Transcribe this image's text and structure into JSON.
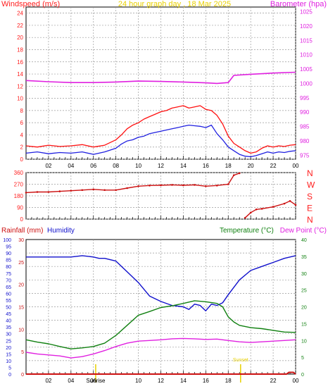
{
  "chart_data": [
    {
      "type": "line",
      "title": "24 hour graph day , 18 Mar 2025",
      "left_axis_label": "Windspeed (m/s)",
      "right_axis_label": "Barometer (hpa)",
      "x_tick_labels": [
        "02",
        "04",
        "06",
        "08",
        "10",
        "12",
        "14",
        "16",
        "18",
        "20",
        "22",
        "00"
      ],
      "x_ticks_hours": [
        2,
        4,
        6,
        8,
        10,
        12,
        14,
        16,
        18,
        20,
        22,
        24
      ],
      "x_range_hours": [
        0,
        24
      ],
      "left_ticks": [
        0,
        2,
        4,
        6,
        8,
        10,
        12,
        14,
        16,
        18,
        20,
        22,
        24
      ],
      "left_ylim": [
        0,
        25
      ],
      "right_ticks": [
        975,
        980,
        985,
        990,
        995,
        1000,
        1005,
        1010,
        1015,
        1020,
        1025
      ],
      "right_ylim": [
        973.6,
        1026.6
      ],
      "grid": true,
      "series": [
        {
          "name": "Windspeed",
          "axis": "left",
          "color": "#2020e0",
          "x": [
            0,
            1,
            2,
            3,
            4,
            5,
            6,
            7,
            8,
            8.5,
            9,
            9.5,
            10,
            10.5,
            11,
            11.5,
            12,
            12.5,
            13,
            13.5,
            14,
            14.5,
            15,
            15.5,
            16,
            16.5,
            17,
            17.5,
            18,
            18.5,
            19,
            19.5,
            20,
            20.5,
            21,
            21.5,
            22,
            22.5,
            23,
            23.5,
            24
          ],
          "y": [
            1.0,
            1.2,
            0.9,
            1.1,
            1.0,
            1.2,
            0.8,
            1.2,
            1.8,
            2.5,
            3.0,
            3.2,
            3.6,
            3.8,
            4.2,
            4.4,
            4.6,
            4.8,
            5.0,
            5.2,
            5.4,
            5.6,
            5.5,
            5.4,
            5.2,
            5.6,
            4.2,
            3.2,
            2.0,
            1.4,
            0.8,
            0.5,
            0.4,
            0.6,
            0.9,
            1.2,
            1.0,
            1.2,
            1.1,
            1.3,
            1.4
          ]
        },
        {
          "name": "Wind gust",
          "axis": "left",
          "color": "#ff1010",
          "x": [
            0,
            1,
            2,
            3,
            4,
            5,
            6,
            7,
            8,
            8.5,
            9,
            9.5,
            10,
            10.5,
            11,
            11.5,
            12,
            12.5,
            13,
            13.5,
            14,
            14.5,
            15,
            15.5,
            16,
            16.5,
            17,
            17.5,
            18,
            18.5,
            19,
            19.5,
            20,
            20.5,
            21,
            21.5,
            22,
            22.5,
            23,
            23.5,
            24
          ],
          "y": [
            2.2,
            2.0,
            2.3,
            2.1,
            2.2,
            2.4,
            2.0,
            2.3,
            3.2,
            4.0,
            5.0,
            5.6,
            6.0,
            6.6,
            7.0,
            7.4,
            7.8,
            8.0,
            8.4,
            8.6,
            8.8,
            8.4,
            8.6,
            8.8,
            8.2,
            8.0,
            7.2,
            5.8,
            3.8,
            2.6,
            2.0,
            1.4,
            1.0,
            1.2,
            1.8,
            2.2,
            2.0,
            2.2,
            2.1,
            2.3,
            2.4
          ]
        },
        {
          "name": "Barometer",
          "axis": "right",
          "color": "#e020e0",
          "x": [
            0,
            2,
            4,
            6,
            8,
            10,
            12,
            14,
            16,
            17,
            18,
            18.5,
            20,
            22,
            24
          ],
          "y": [
            1001.0,
            1000.6,
            1000.3,
            1000.3,
            1000.5,
            1000.8,
            1000.7,
            1000.5,
            1000.2,
            1000.0,
            1000.3,
            1002.8,
            1003.2,
            1003.6,
            1003.9
          ]
        }
      ]
    },
    {
      "type": "scatter",
      "title": "",
      "left_ticks": [
        0,
        90,
        180,
        270,
        360
      ],
      "left_ylim": [
        0,
        360
      ],
      "right_labels": [
        "N",
        "W",
        "S",
        "E",
        "N"
      ],
      "x_range_hours": [
        0,
        24
      ],
      "grid": true,
      "series": [
        {
          "name": "Wind direction",
          "color": "#cc1010",
          "x": [
            0,
            1,
            2,
            3,
            4,
            5,
            6,
            7,
            8,
            9,
            10,
            11,
            12,
            13,
            14,
            15,
            16,
            17,
            18,
            18.5,
            19,
            19.5,
            20,
            20.5,
            21,
            22,
            23,
            23.5,
            24
          ],
          "y": [
            205,
            210,
            210,
            215,
            220,
            225,
            230,
            225,
            225,
            240,
            255,
            260,
            262,
            265,
            262,
            265,
            255,
            260,
            270,
            340,
            355,
            10,
            50,
            75,
            80,
            95,
            120,
            140,
            110
          ]
        }
      ]
    },
    {
      "type": "line",
      "title": "",
      "left_axis_label": "Rainfall (mm)",
      "left2_axis_label": "Humidity",
      "right_axis_label": "Temperature (°C)",
      "right2_axis_label": "Dew Point (°C)",
      "rain_ticks": [
        0,
        5,
        10,
        15,
        20,
        25,
        30
      ],
      "rain_ylim": [
        0,
        30
      ],
      "humidity_ticks": [
        0,
        5,
        10,
        15,
        20,
        25,
        30,
        35,
        40,
        45,
        50,
        55,
        60,
        65,
        70,
        75,
        80,
        85,
        90,
        95,
        100
      ],
      "humidity_ylim": [
        0,
        100
      ],
      "temp_ticks": [
        0,
        5,
        10,
        15,
        20,
        25,
        30,
        35,
        40
      ],
      "temp_ylim": [
        0,
        40
      ],
      "sunrise_label": "Sunrise",
      "sunrise_hour": 6.2,
      "sunset_label": "Sunset",
      "sunset_hour": 19.1,
      "x_range_hours": [
        0,
        24
      ],
      "grid": true,
      "series": [
        {
          "name": "Humidity",
          "axis": "humidity",
          "color": "#1010cc",
          "x": [
            0,
            2,
            4,
            5,
            6,
            6.5,
            7,
            8,
            9,
            10,
            11,
            12,
            13,
            14,
            14.5,
            15,
            15.5,
            16,
            16.5,
            17,
            17.5,
            18,
            19,
            20,
            21,
            22,
            23,
            24
          ],
          "y": [
            87,
            87,
            87,
            88,
            87,
            86,
            86,
            84,
            76,
            68,
            58,
            54,
            51,
            50,
            48,
            52,
            51,
            47,
            52,
            51,
            53,
            59,
            70,
            77,
            80,
            83,
            86,
            88
          ]
        },
        {
          "name": "Temperature",
          "axis": "temp",
          "color": "#108010",
          "x": [
            0,
            1,
            2,
            3,
            4,
            5,
            6,
            7,
            8,
            9,
            10,
            11,
            12,
            13,
            14,
            15,
            16,
            17,
            17.5,
            18,
            18.5,
            19,
            20,
            21,
            22,
            23,
            24
          ],
          "y": [
            10.2,
            9.5,
            9.0,
            8.2,
            7.5,
            7.8,
            8.2,
            9.2,
            11.5,
            14.5,
            17.5,
            18.6,
            19.8,
            20.3,
            21.0,
            21.8,
            21.5,
            21.0,
            20.0,
            17.0,
            15.5,
            14.5,
            13.8,
            13.5,
            13.0,
            12.5,
            12.4
          ]
        },
        {
          "name": "Dew Point",
          "axis": "temp",
          "color": "#e020e0",
          "x": [
            0,
            1,
            2,
            3,
            4,
            5,
            6,
            7,
            8,
            9,
            10,
            11,
            12,
            13,
            14,
            15,
            16,
            17,
            18,
            19,
            20,
            21,
            22,
            23,
            24
          ],
          "y": [
            6.5,
            6.0,
            5.7,
            5.4,
            4.8,
            5.2,
            6.0,
            7.0,
            8.2,
            9.2,
            9.8,
            10.0,
            10.2,
            10.5,
            10.6,
            10.5,
            10.3,
            10.4,
            10.0,
            9.6,
            9.4,
            9.6,
            9.8,
            10.0,
            10.2
          ]
        },
        {
          "name": "Rainfall",
          "axis": "rain",
          "color": "#cc1010",
          "x": [
            0,
            23.2,
            23.4,
            23.8,
            24
          ],
          "y": [
            0,
            0,
            0.4,
            0.4,
            0
          ]
        }
      ]
    }
  ],
  "colors": {
    "wind_axis": "#ff2020",
    "baro_axis": "#e020e0",
    "title": "#e8d000",
    "rain_axis": "#cc1010",
    "humidity_axis": "#1010cc",
    "temp_axis": "#108010",
    "dew_axis": "#e020e0",
    "sun_markers": "#e8d000"
  }
}
